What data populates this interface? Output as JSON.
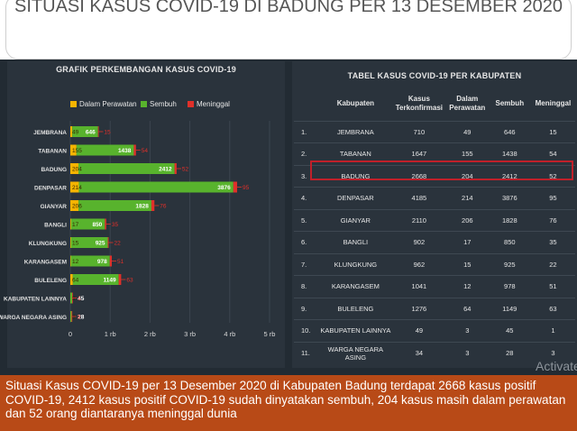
{
  "headline": "SITUASI KASUS COVID-19 DI BADUNG PER 13 DESEMBER 2020",
  "watermark": "Activate",
  "caption": "Situasi Kasus COVID-19 per 13 Desember 2020 di Kabupaten Badung terdapat 2668 kasus positif COVID-19, 2412 kasus positif COVID-19 sudah dinyatakan sembuh, 204 kasus masih dalam perawatan dan 52 orang diantaranya meninggal dunia",
  "colors": {
    "perawatan": "#f5b400",
    "sembuh": "#58b32d",
    "meninggal": "#e0302a"
  },
  "chart_data": [
    {
      "type": "bar",
      "orientation": "horizontal",
      "stacked": true,
      "title": "GRAFIK PERKEMBANGAN KASUS COVID-19",
      "legend_position": "top",
      "categories": [
        "JEMBRANA",
        "TABANAN",
        "BADUNG",
        "DENPASAR",
        "GIANYAR",
        "BANGLI",
        "KLUNGKUNG",
        "KARANGASEM",
        "BULELENG",
        "KABUPATEN LAINNYA",
        "WARGA NEGARA ASING"
      ],
      "series": [
        {
          "name": "Dalam Perawatan",
          "values": [
            49,
            155,
            204,
            214,
            206,
            17,
            15,
            12,
            64,
            3,
            3
          ]
        },
        {
          "name": "Sembuh",
          "values": [
            646,
            1438,
            2412,
            3876,
            1828,
            850,
            925,
            978,
            1149,
            45,
            28
          ]
        },
        {
          "name": "Meninggal",
          "values": [
            15,
            54,
            52,
            95,
            76,
            35,
            22,
            51,
            63,
            1,
            3
          ]
        }
      ],
      "xlim": [
        0,
        5000
      ],
      "xticks": [
        0,
        1000,
        2000,
        3000,
        4000,
        5000
      ],
      "xtick_labels": [
        "0",
        "1 rb",
        "2 rb",
        "3 rb",
        "4 rb",
        "5 rb"
      ],
      "grid": "vertical"
    },
    {
      "type": "table",
      "title": "TABEL KASUS COVID-19 PER KABUPATEN",
      "columns": [
        "",
        "Kabupaten",
        "Kasus Terkonfirmasi",
        "Dalam Perawatan",
        "Sembuh",
        "Meninggal"
      ],
      "rows": [
        [
          "1.",
          "JEMBRANA",
          "710",
          "49",
          "646",
          "15"
        ],
        [
          "2.",
          "TABANAN",
          "1647",
          "155",
          "1438",
          "54"
        ],
        [
          "3.",
          "BADUNG",
          "2668",
          "204",
          "2412",
          "52"
        ],
        [
          "4.",
          "DENPASAR",
          "4185",
          "214",
          "3876",
          "95"
        ],
        [
          "5.",
          "GIANYAR",
          "2110",
          "206",
          "1828",
          "76"
        ],
        [
          "6.",
          "BANGLI",
          "902",
          "17",
          "850",
          "35"
        ],
        [
          "7.",
          "KLUNGKUNG",
          "962",
          "15",
          "925",
          "22"
        ],
        [
          "8.",
          "KARANGASEM",
          "1041",
          "12",
          "978",
          "51"
        ],
        [
          "9.",
          "BULELENG",
          "1276",
          "64",
          "1149",
          "63"
        ],
        [
          "10.",
          "KABUPATEN LAINNYA",
          "49",
          "3",
          "45",
          "1"
        ],
        [
          "11.",
          "WARGA NEGARA ASING",
          "34",
          "3",
          "28",
          "3"
        ]
      ],
      "highlighted_row": "BADUNG"
    }
  ]
}
